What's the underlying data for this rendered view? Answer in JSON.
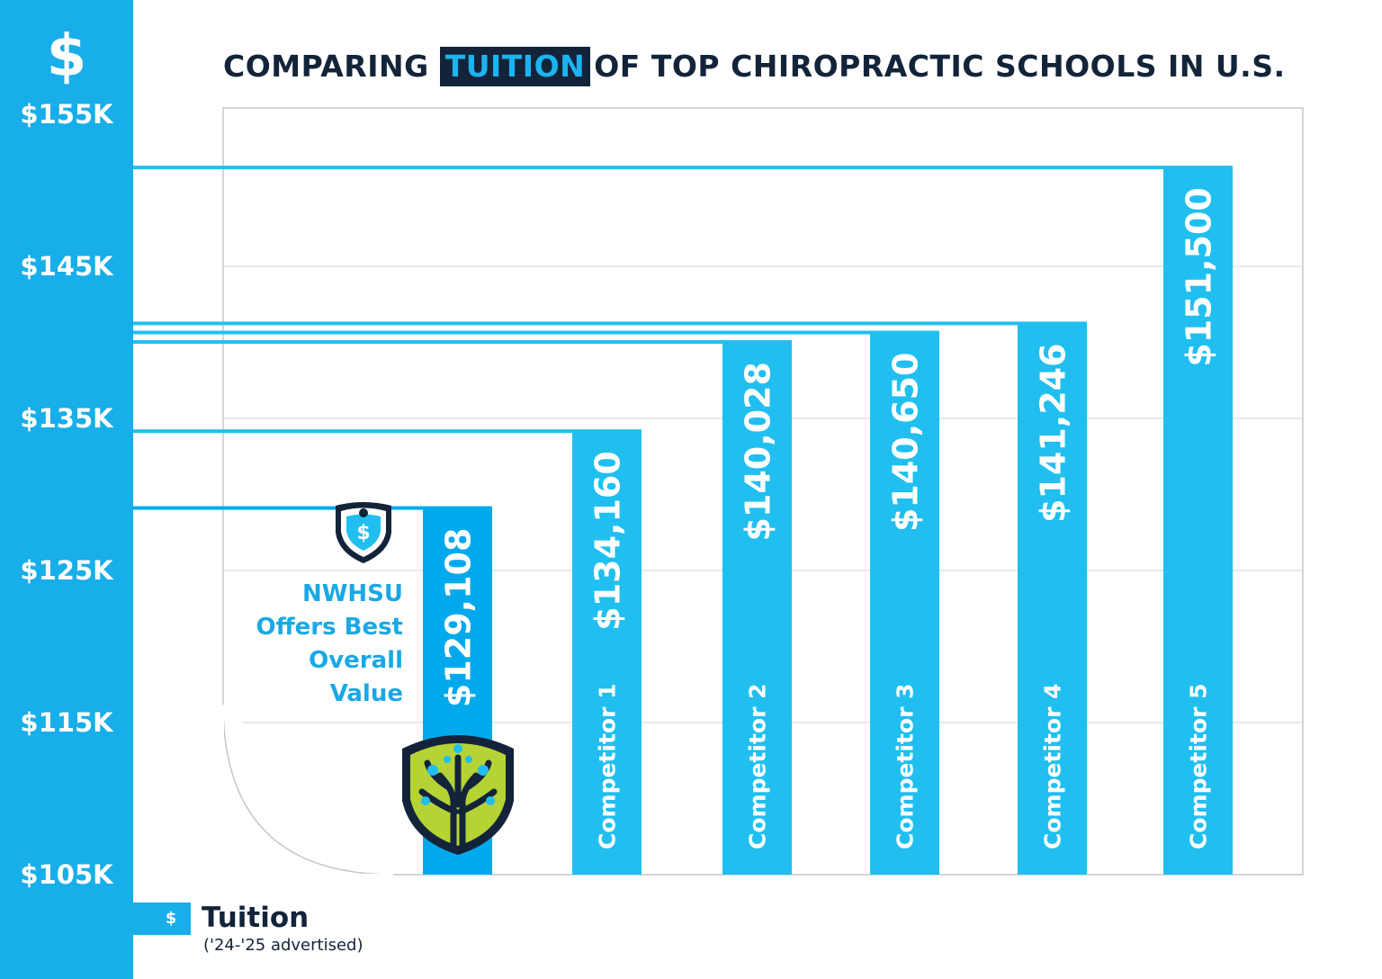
{
  "title": {
    "prefix": "COMPARING",
    "highlight": "TUITION",
    "suffix": "OF TOP CHIROPRACTIC SCHOOLS IN U.S."
  },
  "axis_symbol": "$",
  "callout": {
    "line1": "NWHSU",
    "line2": "Offers Best",
    "line3": "Overall",
    "line4": "Value"
  },
  "legend": {
    "symbol": "$",
    "label": "Tuition",
    "sublabel": "('24-'25 advertised)"
  },
  "colors": {
    "accent": "#17aee9",
    "bar_primary": "#00a9ec",
    "bar": "#20bff0",
    "dark": "#13243a",
    "logo_green": "#b5d334"
  },
  "chart_data": {
    "type": "bar",
    "title": "COMPARING TUITION OF TOP CHIROPRACTIC SCHOOLS IN U.S.",
    "xlabel": "",
    "ylabel": "Tuition",
    "categories": [
      "NWHSU",
      "Competitor 1",
      "Competitor 2",
      "Competitor 3",
      "Competitor 4",
      "Competitor 5"
    ],
    "values": [
      129108,
      134160,
      140028,
      140650,
      141246,
      151500
    ],
    "value_labels": [
      "$129,108",
      "$134,160",
      "$140,028",
      "$140,650",
      "$141,246",
      "$151,500"
    ],
    "ylim": [
      105000,
      155000
    ],
    "yticks": [
      105000,
      115000,
      125000,
      135000,
      145000,
      155000
    ],
    "ytick_labels": [
      "$105K",
      "$115K",
      "$125K",
      "$135K",
      "$145K",
      "$155K"
    ],
    "grid": true,
    "legend": [
      "Tuition"
    ]
  }
}
